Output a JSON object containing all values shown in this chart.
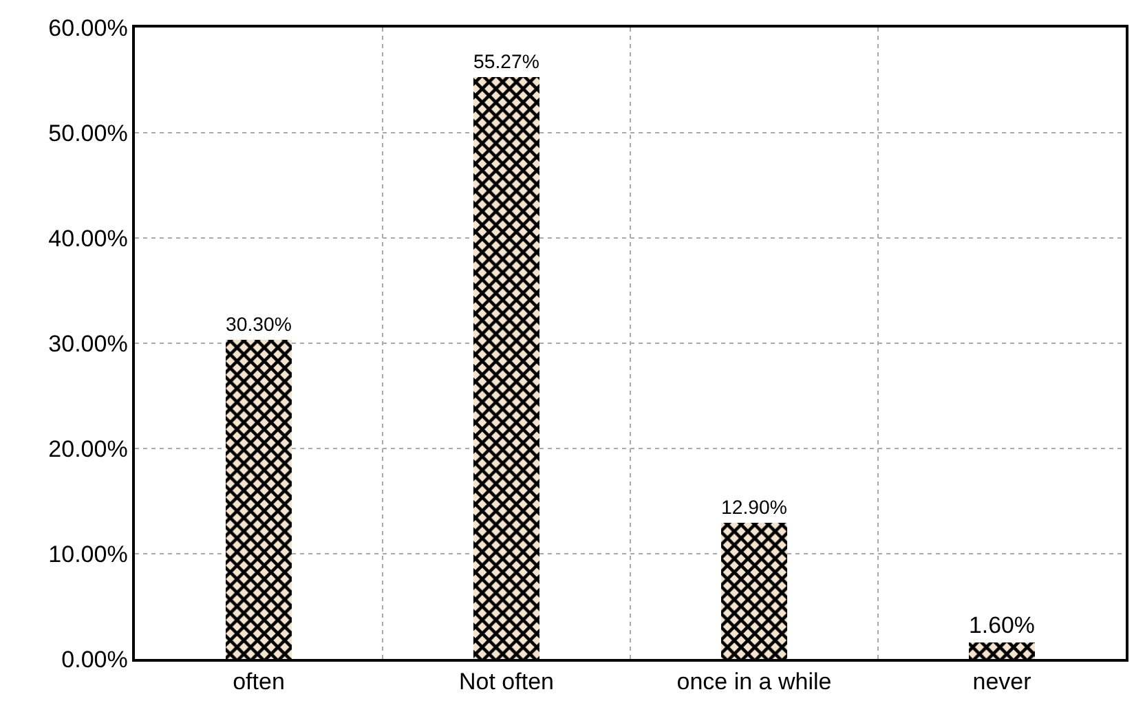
{
  "chart_data": {
    "type": "bar",
    "categories": [
      "often",
      "Not often",
      "once in a while",
      "never"
    ],
    "values": [
      30.3,
      55.27,
      12.9,
      1.6
    ],
    "value_labels": [
      "30.30%",
      "55.27%",
      "12.90%",
      "1.60%"
    ],
    "color": "#000000",
    "ylim": [
      0,
      60
    ],
    "yticks": [
      {
        "value": 0,
        "label": "0.00%"
      },
      {
        "value": 10,
        "label": "10.00%"
      },
      {
        "value": 20,
        "label": "20.00%"
      },
      {
        "value": 30,
        "label": "30.00%"
      },
      {
        "value": 40,
        "label": "40.00%"
      },
      {
        "value": 50,
        "label": "50.00%"
      },
      {
        "value": 60,
        "label": "60.00%"
      }
    ],
    "grid": true
  }
}
